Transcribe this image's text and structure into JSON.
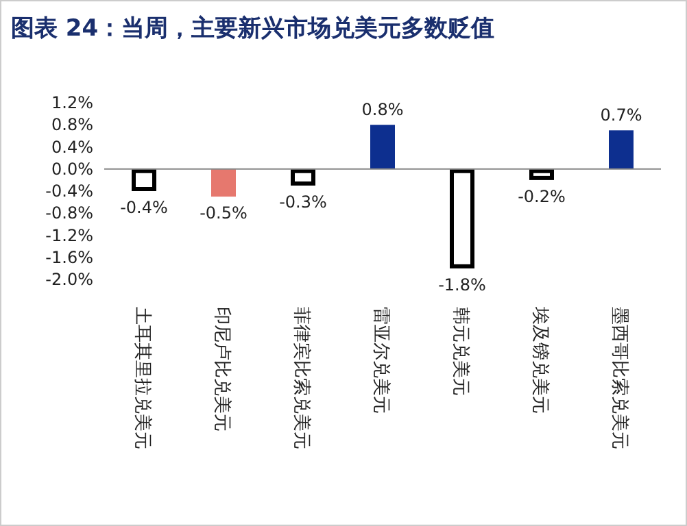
{
  "chart_data": {
    "type": "bar",
    "title": "图表 24：当周，主要新兴市场兑美元多数贬值",
    "categories": [
      "土耳其里拉兑美元",
      "印尼卢比兑美元",
      "菲律宾比索兑美元",
      "雷亚尔兑美元",
      "韩元兑美元",
      "埃及镑兑美元",
      "墨西哥比索兑美元"
    ],
    "values": [
      -0.4,
      -0.5,
      -0.3,
      0.8,
      -1.8,
      -0.2,
      0.7
    ],
    "colors": [
      "#ffffff",
      "#e6786e",
      "#ffffff",
      "#0d2f8f",
      "#ffffff",
      "#ffffff",
      "#0d2f8f"
    ],
    "value_labels": [
      "-0.4%",
      "-0.5%",
      "-0.3%",
      "0.8%",
      "-1.8%",
      "-0.2%",
      "0.7%"
    ],
    "ylim": [
      -2.0,
      1.2
    ],
    "yticks": [
      {
        "value": -2.0,
        "label": "-2.0%"
      },
      {
        "value": -1.6,
        "label": "-1.6%"
      },
      {
        "value": -1.2,
        "label": "-1.2%"
      },
      {
        "value": -0.8,
        "label": "-0.8%"
      },
      {
        "value": -0.4,
        "label": "-0.4%"
      },
      {
        "value": 0.0,
        "label": "0.0%"
      },
      {
        "value": 0.4,
        "label": "0.4%"
      },
      {
        "value": 0.8,
        "label": "0.8%"
      },
      {
        "value": 1.2,
        "label": "1.2%"
      }
    ]
  }
}
